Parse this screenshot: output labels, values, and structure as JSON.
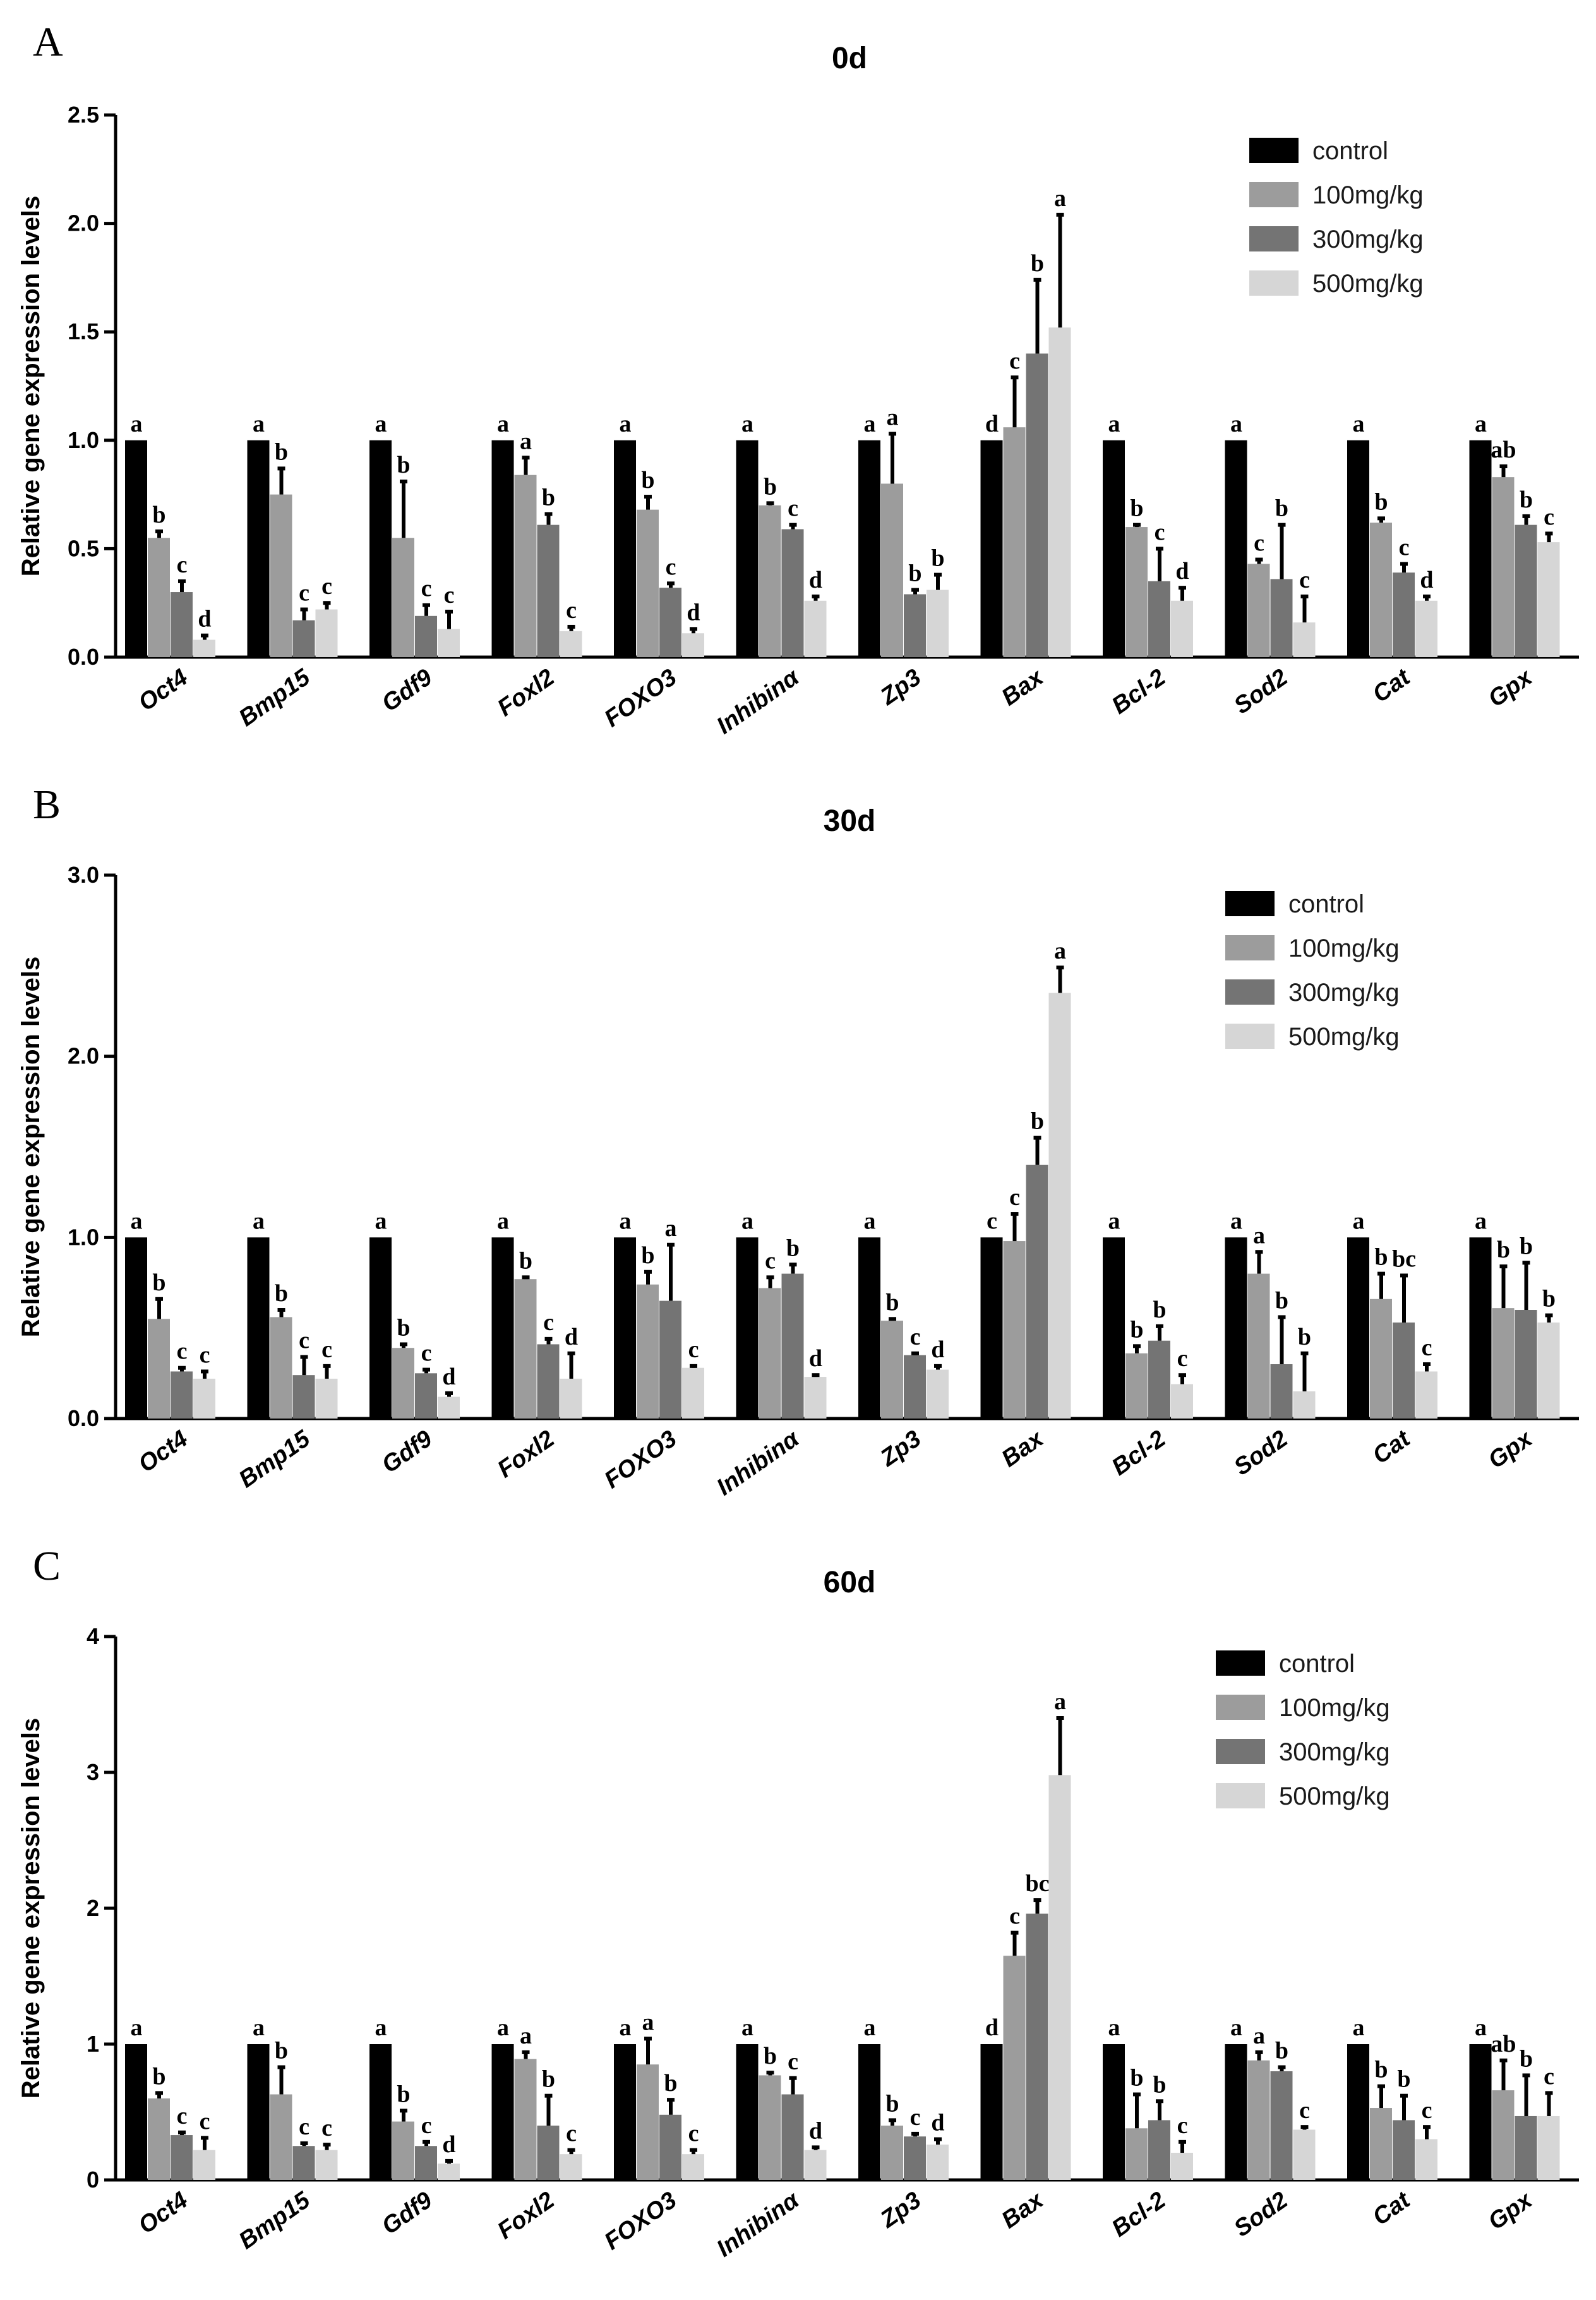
{
  "colors": {
    "control": "#000000",
    "100mg/kg": "#9c9c9c",
    "300mg/kg": "#747474",
    "500mg/kg": "#d6d6d6"
  },
  "chart_data": [
    {
      "type": "bar",
      "panel": "A",
      "title": "0d",
      "xlabel": "",
      "ylabel": "Relative gene expression levels",
      "ylim": [
        0,
        2.5
      ],
      "yticks": [
        "0.0",
        "0.5",
        "1.0",
        "1.5",
        "2.0",
        "2.5"
      ],
      "legend_position": "top-right",
      "categories": [
        "Oct4",
        "Bmp15",
        "Gdf9",
        "Foxl2",
        "FOXO3",
        "Inhibinα",
        "Zp3",
        "Bax",
        "Bcl-2",
        "Sod2",
        "Cat",
        "Gpx"
      ],
      "series": [
        {
          "name": "control",
          "values": [
            1.0,
            1.0,
            1.0,
            1.0,
            1.0,
            1.0,
            1.0,
            1.0,
            1.0,
            1.0,
            1.0,
            1.0
          ],
          "errors": [
            0,
            0,
            0,
            0,
            0,
            0,
            0,
            0,
            0,
            0,
            0,
            0
          ],
          "letters": [
            "a",
            "a",
            "a",
            "a",
            "a",
            "a",
            "a",
            "d",
            "a",
            "a",
            "a",
            "a"
          ]
        },
        {
          "name": "100mg/kg",
          "values": [
            0.55,
            0.75,
            0.55,
            0.84,
            0.68,
            0.7,
            0.8,
            1.06,
            0.6,
            0.43,
            0.62,
            0.83
          ],
          "errors": [
            0.03,
            0.12,
            0.26,
            0.08,
            0.06,
            0.01,
            0.23,
            0.23,
            0.01,
            0.02,
            0.02,
            0.05
          ],
          "letters": [
            "b",
            "b",
            "b",
            "a",
            "b",
            "b",
            "a",
            "c",
            "b",
            "c",
            "b",
            "ab"
          ]
        },
        {
          "name": "300mg/kg",
          "values": [
            0.3,
            0.17,
            0.19,
            0.61,
            0.32,
            0.59,
            0.29,
            1.4,
            0.35,
            0.36,
            0.39,
            0.61
          ],
          "errors": [
            0.05,
            0.05,
            0.05,
            0.05,
            0.02,
            0.02,
            0.02,
            0.34,
            0.15,
            0.25,
            0.04,
            0.04
          ],
          "letters": [
            "c",
            "c",
            "c",
            "b",
            "c",
            "c",
            "b",
            "b",
            "c",
            "b",
            "c",
            "b"
          ]
        },
        {
          "name": "500mg/kg",
          "values": [
            0.08,
            0.22,
            0.13,
            0.12,
            0.11,
            0.26,
            0.31,
            1.52,
            0.26,
            0.16,
            0.26,
            0.53
          ],
          "errors": [
            0.02,
            0.03,
            0.08,
            0.02,
            0.02,
            0.02,
            0.07,
            0.52,
            0.06,
            0.12,
            0.02,
            0.04
          ],
          "letters": [
            "d",
            "c",
            "c",
            "c",
            "d",
            "d",
            "b",
            "a",
            "d",
            "c",
            "d",
            "c"
          ]
        }
      ]
    },
    {
      "type": "bar",
      "panel": "B",
      "title": "30d",
      "xlabel": "",
      "ylabel": "Relative gene expression levels",
      "ylim": [
        0,
        3.0
      ],
      "yticks": [
        "0.0",
        "1.0",
        "2.0",
        "3.0"
      ],
      "legend_position": "top-right",
      "categories": [
        "Oct4",
        "Bmp15",
        "Gdf9",
        "Foxl2",
        "FOXO3",
        "Inhibinα",
        "Zp3",
        "Bax",
        "Bcl-2",
        "Sod2",
        "Cat",
        "Gpx"
      ],
      "series": [
        {
          "name": "control",
          "values": [
            1.0,
            1.0,
            1.0,
            1.0,
            1.0,
            1.0,
            1.0,
            1.0,
            1.0,
            1.0,
            1.0,
            1.0
          ],
          "errors": [
            0,
            0,
            0,
            0,
            0,
            0,
            0,
            0,
            0,
            0,
            0,
            0
          ],
          "letters": [
            "a",
            "a",
            "a",
            "a",
            "a",
            "a",
            "a",
            "c",
            "a",
            "a",
            "a",
            "a"
          ]
        },
        {
          "name": "100mg/kg",
          "values": [
            0.55,
            0.56,
            0.39,
            0.77,
            0.74,
            0.72,
            0.54,
            0.98,
            0.36,
            0.8,
            0.66,
            0.61
          ],
          "errors": [
            0.11,
            0.04,
            0.02,
            0.01,
            0.07,
            0.06,
            0.01,
            0.15,
            0.04,
            0.12,
            0.14,
            0.23
          ],
          "letters": [
            "b",
            "b",
            "b",
            "b",
            "b",
            "c",
            "b",
            "c",
            "b",
            "a",
            "b",
            "b"
          ]
        },
        {
          "name": "300mg/kg",
          "values": [
            0.26,
            0.24,
            0.25,
            0.41,
            0.65,
            0.8,
            0.35,
            1.4,
            0.43,
            0.3,
            0.53,
            0.6
          ],
          "errors": [
            0.02,
            0.1,
            0.02,
            0.03,
            0.31,
            0.05,
            0.01,
            0.15,
            0.08,
            0.26,
            0.26,
            0.26
          ],
          "letters": [
            "c",
            "c",
            "c",
            "c",
            "a",
            "b",
            "c",
            "b",
            "b",
            "b",
            "bc",
            "b"
          ]
        },
        {
          "name": "500mg/kg",
          "values": [
            0.22,
            0.22,
            0.12,
            0.22,
            0.28,
            0.23,
            0.27,
            2.35,
            0.19,
            0.15,
            0.26,
            0.53
          ],
          "errors": [
            0.04,
            0.07,
            0.02,
            0.14,
            0.01,
            0.01,
            0.02,
            0.14,
            0.05,
            0.21,
            0.04,
            0.04
          ],
          "letters": [
            "c",
            "c",
            "d",
            "d",
            "c",
            "d",
            "d",
            "a",
            "c",
            "b",
            "c",
            "b"
          ]
        }
      ]
    },
    {
      "type": "bar",
      "panel": "C",
      "title": "60d",
      "xlabel": "",
      "ylabel": "Relative gene expression levels",
      "ylim": [
        0,
        4
      ],
      "yticks": [
        "0",
        "1",
        "2",
        "3",
        "4"
      ],
      "legend_position": "top-right",
      "categories": [
        "Oct4",
        "Bmp15",
        "Gdf9",
        "Foxl2",
        "FOXO3",
        "Inhibinα",
        "Zp3",
        "Bax",
        "Bcl-2",
        "Sod2",
        "Cat",
        "Gpx"
      ],
      "series": [
        {
          "name": "control",
          "values": [
            1.0,
            1.0,
            1.0,
            1.0,
            1.0,
            1.0,
            1.0,
            1.0,
            1.0,
            1.0,
            1.0,
            1.0
          ],
          "errors": [
            0,
            0,
            0,
            0,
            0,
            0,
            0,
            0,
            0,
            0,
            0,
            0
          ],
          "letters": [
            "a",
            "a",
            "a",
            "a",
            "a",
            "a",
            "a",
            "d",
            "a",
            "a",
            "a",
            "a"
          ]
        },
        {
          "name": "100mg/kg",
          "values": [
            0.6,
            0.63,
            0.43,
            0.89,
            0.85,
            0.77,
            0.4,
            1.65,
            0.38,
            0.88,
            0.53,
            0.66
          ],
          "errors": [
            0.04,
            0.2,
            0.08,
            0.05,
            0.19,
            0.02,
            0.04,
            0.17,
            0.25,
            0.06,
            0.16,
            0.22
          ],
          "letters": [
            "b",
            "b",
            "b",
            "a",
            "a",
            "b",
            "b",
            "c",
            "b",
            "a",
            "b",
            "ab"
          ]
        },
        {
          "name": "300mg/kg",
          "values": [
            0.33,
            0.25,
            0.25,
            0.4,
            0.48,
            0.63,
            0.32,
            1.96,
            0.44,
            0.8,
            0.44,
            0.47
          ],
          "errors": [
            0.02,
            0.02,
            0.03,
            0.22,
            0.11,
            0.12,
            0.02,
            0.1,
            0.14,
            0.03,
            0.18,
            0.3
          ],
          "letters": [
            "c",
            "c",
            "c",
            "b",
            "b",
            "c",
            "c",
            "bc",
            "b",
            "b",
            "b",
            "b"
          ]
        },
        {
          "name": "500mg/kg",
          "values": [
            0.22,
            0.22,
            0.12,
            0.19,
            0.19,
            0.22,
            0.26,
            2.98,
            0.2,
            0.37,
            0.3,
            0.47
          ],
          "errors": [
            0.09,
            0.04,
            0.02,
            0.03,
            0.03,
            0.02,
            0.04,
            0.42,
            0.08,
            0.02,
            0.09,
            0.17
          ],
          "letters": [
            "c",
            "c",
            "d",
            "c",
            "c",
            "d",
            "d",
            "a",
            "c",
            "c",
            "c",
            "c"
          ]
        }
      ]
    }
  ]
}
